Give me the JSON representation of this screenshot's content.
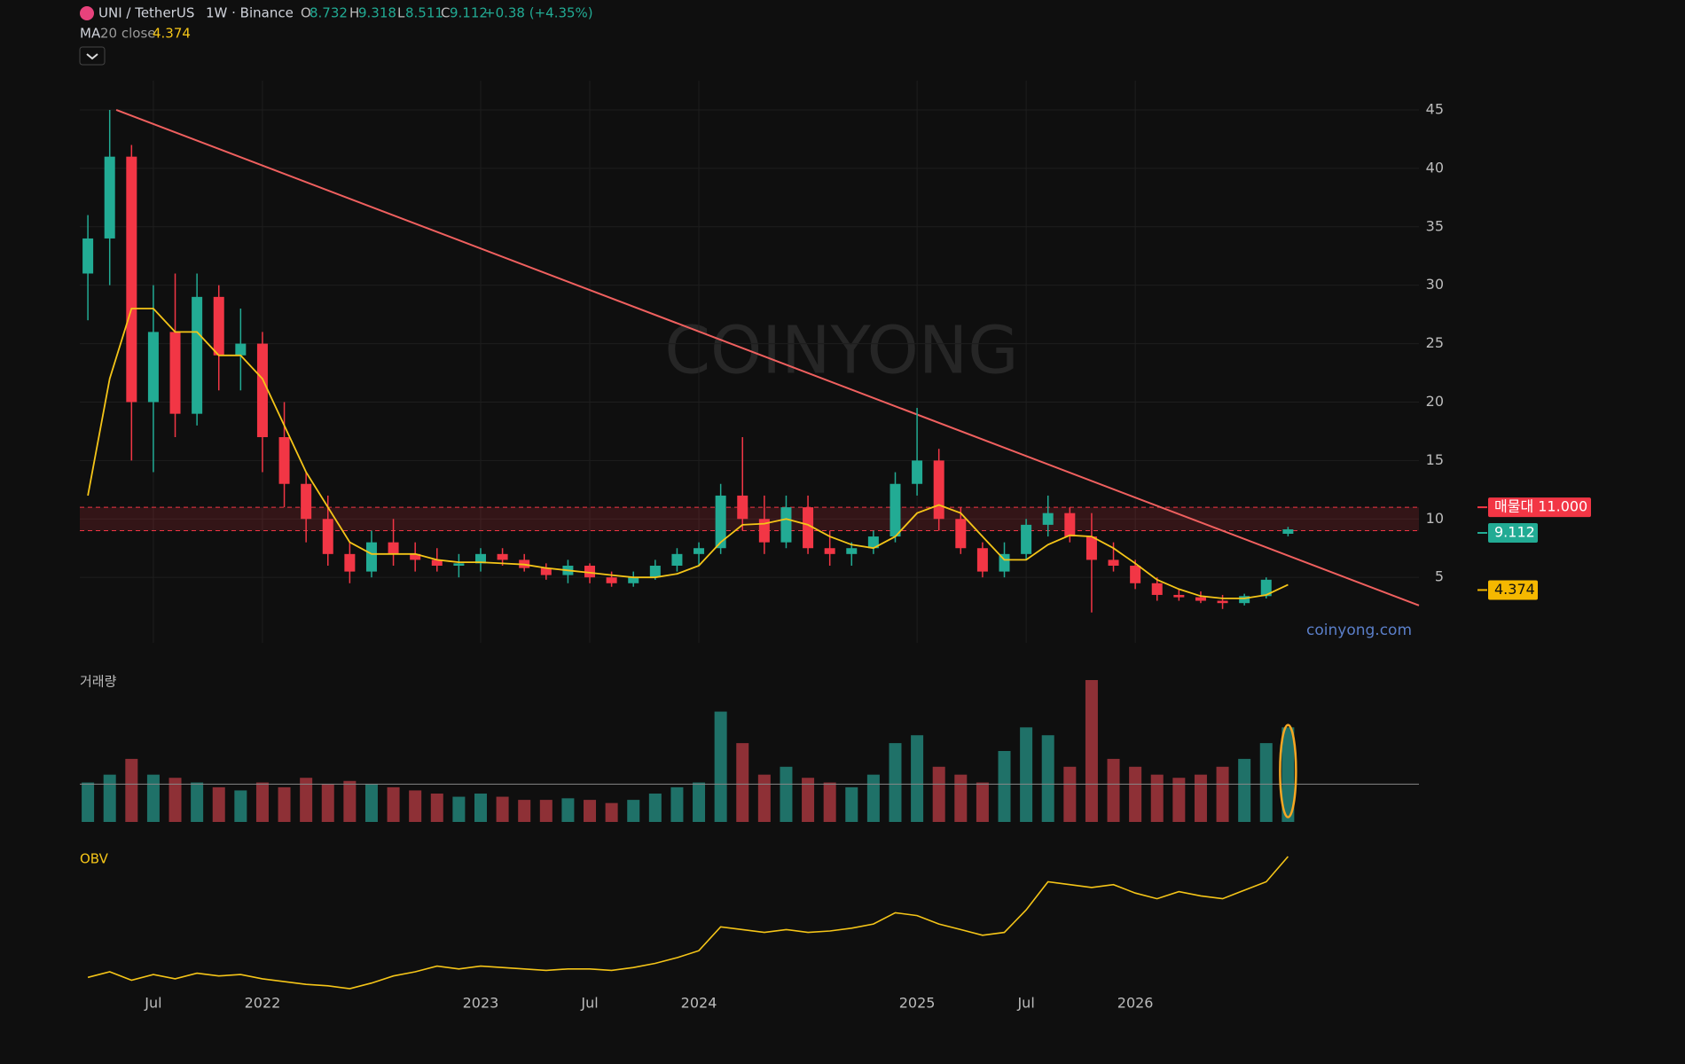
{
  "header": {
    "symbol": "UNI / TetherUS",
    "interval_exchange": "1W · Binance",
    "open_label": "O",
    "high_label": "H",
    "low_label": "L",
    "close_label": "C",
    "change": "+0.38 (+4.35%)",
    "ma_name": "MA",
    "ma_params": "20 close"
  },
  "chart_data": {
    "type": "candlestick",
    "x": [
      2021.2,
      2021.3,
      2021.4,
      2021.5,
      2021.6,
      2021.7,
      2021.8,
      2021.9,
      2022.0,
      2022.1,
      2022.2,
      2022.3,
      2022.4,
      2022.5,
      2022.6,
      2022.7,
      2022.8,
      2022.9,
      2023.0,
      2023.1,
      2023.2,
      2023.3,
      2023.4,
      2023.5,
      2023.6,
      2023.7,
      2023.8,
      2023.9,
      2024.0,
      2024.1,
      2024.2,
      2024.3,
      2024.4,
      2024.5,
      2024.6,
      2024.7,
      2024.8,
      2024.9,
      2025.0,
      2025.1,
      2025.2,
      2025.3,
      2025.4,
      2025.5,
      2025.6,
      2025.7,
      2025.8,
      2025.9,
      2026.0,
      2026.1,
      2026.2,
      2026.3,
      2026.4,
      2026.5,
      2026.6,
      2026.7
    ],
    "open": [
      31,
      34,
      41,
      20,
      26,
      19,
      29,
      24,
      25,
      17,
      13,
      10,
      7,
      5.5,
      8,
      7,
      6.5,
      6,
      6.2,
      7,
      6.5,
      5.8,
      5.2,
      6,
      5,
      4.5,
      5,
      6,
      7,
      7.5,
      12,
      10,
      8,
      11,
      7.5,
      7,
      7.5,
      8.5,
      13,
      15,
      10,
      7.5,
      5.5,
      7,
      9.5,
      10.5,
      8.5,
      6.5,
      6,
      4.5,
      3.5,
      3.3,
      3,
      2.8,
      3.4,
      8.732
    ],
    "high": [
      36,
      45,
      42,
      30,
      31,
      31,
      30,
      28,
      26,
      20,
      14,
      12,
      8,
      9,
      10,
      8,
      7.5,
      7,
      7.5,
      7.5,
      7,
      6.2,
      6.5,
      6.2,
      5.5,
      5.5,
      6.5,
      7.5,
      8,
      13,
      17,
      12,
      12,
      12,
      9,
      8,
      9,
      14,
      19.5,
      16,
      11,
      8,
      8,
      10,
      12,
      11,
      10.5,
      8,
      6.5,
      5,
      4,
      3.8,
      3.5,
      3.6,
      5,
      9.318
    ],
    "low": [
      27,
      30,
      15,
      14,
      17,
      18,
      21,
      21,
      14,
      11,
      8,
      6,
      4.5,
      5,
      6,
      5.5,
      5.5,
      5,
      5.5,
      6,
      5.5,
      4.8,
      4.5,
      4.5,
      4.2,
      4.2,
      4.8,
      5.5,
      6,
      7,
      9,
      7,
      7.5,
      7,
      6,
      6,
      7,
      8,
      12,
      9,
      7,
      5,
      5,
      6.5,
      8.5,
      8,
      2,
      5.5,
      4,
      3,
      3,
      2.8,
      2.3,
      2.6,
      3.2,
      8.511
    ],
    "close": [
      34,
      41,
      20,
      26,
      19,
      29,
      24,
      25,
      17,
      13,
      10,
      7,
      5.5,
      8,
      7,
      6.5,
      6,
      6.2,
      7,
      6.5,
      5.8,
      5.2,
      6,
      5,
      4.5,
      5,
      6,
      7,
      7.5,
      12,
      10,
      8,
      11,
      7.5,
      7,
      7.5,
      8.5,
      13,
      15,
      10,
      7.5,
      5.5,
      7,
      9.5,
      10.5,
      8.5,
      6.5,
      6,
      4.5,
      3.5,
      3.3,
      3,
      2.8,
      3.4,
      4.8,
      9.112
    ],
    "ma": [
      12,
      22,
      28,
      28,
      26,
      26,
      24,
      24,
      22,
      18,
      14,
      11,
      8,
      7,
      7,
      7,
      6.5,
      6.3,
      6.3,
      6.2,
      6.1,
      5.8,
      5.6,
      5.4,
      5.2,
      5,
      5,
      5.3,
      6,
      8,
      9.5,
      9.6,
      10,
      9.5,
      8.5,
      7.8,
      7.5,
      8.5,
      10.5,
      11.2,
      10.5,
      8.5,
      6.5,
      6.5,
      7.8,
      8.6,
      8.5,
      7.5,
      6.2,
      4.8,
      4,
      3.4,
      3.2,
      3.2,
      3.5,
      4.374
    ],
    "volume": {
      "label": "거래량",
      "values": [
        25,
        30,
        40,
        30,
        28,
        25,
        22,
        20,
        25,
        22,
        28,
        24,
        26,
        24,
        22,
        20,
        18,
        16,
        18,
        16,
        14,
        14,
        15,
        14,
        12,
        14,
        18,
        22,
        25,
        70,
        50,
        30,
        35,
        28,
        25,
        22,
        30,
        50,
        55,
        35,
        30,
        25,
        45,
        60,
        55,
        35,
        90,
        40,
        35,
        30,
        28,
        30,
        35,
        40,
        50,
        60
      ],
      "average": 24
    },
    "obv": {
      "label": "OBV",
      "values": [
        14,
        18,
        12,
        16,
        13,
        17,
        15,
        16,
        13,
        11,
        9,
        8,
        6,
        10,
        15,
        18,
        22,
        20,
        22,
        21,
        20,
        19,
        20,
        20,
        19,
        21,
        24,
        28,
        33,
        50,
        48,
        46,
        48,
        46,
        47,
        49,
        52,
        60,
        58,
        52,
        48,
        44,
        46,
        62,
        82,
        80,
        78,
        80,
        74,
        70,
        75,
        72,
        70,
        76,
        82,
        100
      ]
    },
    "ylim": [
      -0.6,
      47.5
    ],
    "yticks": [
      5,
      10,
      15,
      20,
      25,
      30,
      35,
      40,
      45
    ],
    "xlim": [
      2021.163,
      2027.3
    ],
    "xticks": [
      {
        "value": 2021.5,
        "label": "Jul"
      },
      {
        "value": 2022,
        "label": "2022"
      },
      {
        "value": 2023,
        "label": "2023"
      },
      {
        "value": 2023.5,
        "label": "Jul"
      },
      {
        "value": 2024,
        "label": "2024"
      },
      {
        "value": 2025,
        "label": "2025"
      },
      {
        "value": 2025.5,
        "label": "Jul"
      },
      {
        "value": 2026,
        "label": "2026"
      }
    ],
    "zone": {
      "low": 9,
      "high": 11,
      "label": "매물대 11.000"
    },
    "trendline": {
      "x": [
        2021.33,
        2027.3
      ],
      "y": [
        45,
        2.6
      ]
    },
    "up_color": "#22ab94",
    "down_color": "#f23645",
    "ma_color": "#f5c518",
    "obv_color": "#f5c518",
    "trend_color": "#f0605f",
    "watermark": "COINYONG",
    "site": "coinyong.com"
  }
}
